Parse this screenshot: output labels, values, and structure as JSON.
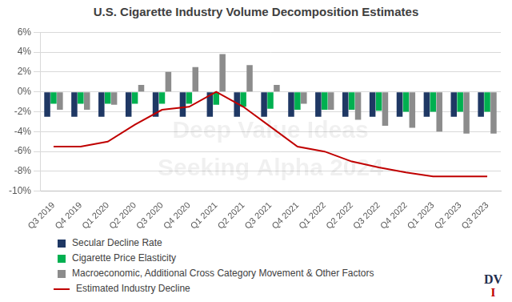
{
  "chart_data": {
    "type": "bar",
    "title": "U.S. Cigarette Industry Volume Decomposition Estimates",
    "annotations": [
      "Deep Value Ideas",
      "Seeking Alpha 2024",
      "DV",
      "I"
    ],
    "categories": [
      "Q3 2019",
      "Q4 2019",
      "Q1 2020",
      "Q2 2020",
      "Q3 2020",
      "Q4 2020",
      "Q1 2021",
      "Q2 2021",
      "Q3 2021",
      "Q4 2021",
      "Q1 2022",
      "Q2 2022",
      "Q3 2022",
      "Q4 2022",
      "Q1 2023",
      "Q2 2023",
      "Q3 2023"
    ],
    "series": [
      {
        "name": "Secular Decline Rate",
        "type": "bar",
        "color": "#1f3864",
        "values": [
          -2.5,
          -2.5,
          -2.5,
          -2.5,
          -2.5,
          -2.5,
          -2.5,
          -2.5,
          -2.5,
          -2.5,
          -2.5,
          -2.5,
          -2.5,
          -2.5,
          -2.5,
          -2.5,
          -2.5
        ]
      },
      {
        "name": "Cigarette Price Elasticity",
        "type": "bar",
        "color": "#00b050",
        "values": [
          -1.2,
          -1.2,
          -1.2,
          -1.2,
          -1.2,
          -1.2,
          -1.3,
          -1.5,
          -1.7,
          -1.8,
          -1.8,
          -1.8,
          -1.9,
          -2.0,
          -2.0,
          -2.0,
          -2.0
        ]
      },
      {
        "name": "Macroeconomic, Additional Cross Category Movement & Other Factors",
        "type": "bar",
        "color": "#8c8c8c",
        "values": [
          -1.8,
          -1.8,
          -1.3,
          0.7,
          2.0,
          2.5,
          3.8,
          2.7,
          0.7,
          -1.2,
          -1.8,
          -2.8,
          -3.4,
          -3.6,
          -4.0,
          -4.2,
          -4.2
        ]
      },
      {
        "name": "Estimated Industry Decline",
        "type": "line",
        "color": "#c00000",
        "values": [
          -5.5,
          -5.5,
          -5.0,
          -3.3,
          -1.8,
          -1.5,
          0,
          -1.5,
          -3.5,
          -5.5,
          -6.0,
          -7.0,
          -7.6,
          -8.1,
          -8.5,
          -8.5,
          -8.5
        ]
      }
    ],
    "ylim": [
      -10,
      6
    ],
    "yticks": [
      {
        "value": -10,
        "label": "-10%"
      },
      {
        "value": -8,
        "label": "-8%"
      },
      {
        "value": -6,
        "label": "-6%"
      },
      {
        "value": -4,
        "label": "-4%"
      },
      {
        "value": -2,
        "label": "-2%"
      },
      {
        "value": 0,
        "label": "0%"
      },
      {
        "value": 2,
        "label": "2%"
      },
      {
        "value": 4,
        "label": "4%"
      },
      {
        "value": 6,
        "label": "6%"
      }
    ],
    "grid": true,
    "legend": "bottom-left"
  }
}
